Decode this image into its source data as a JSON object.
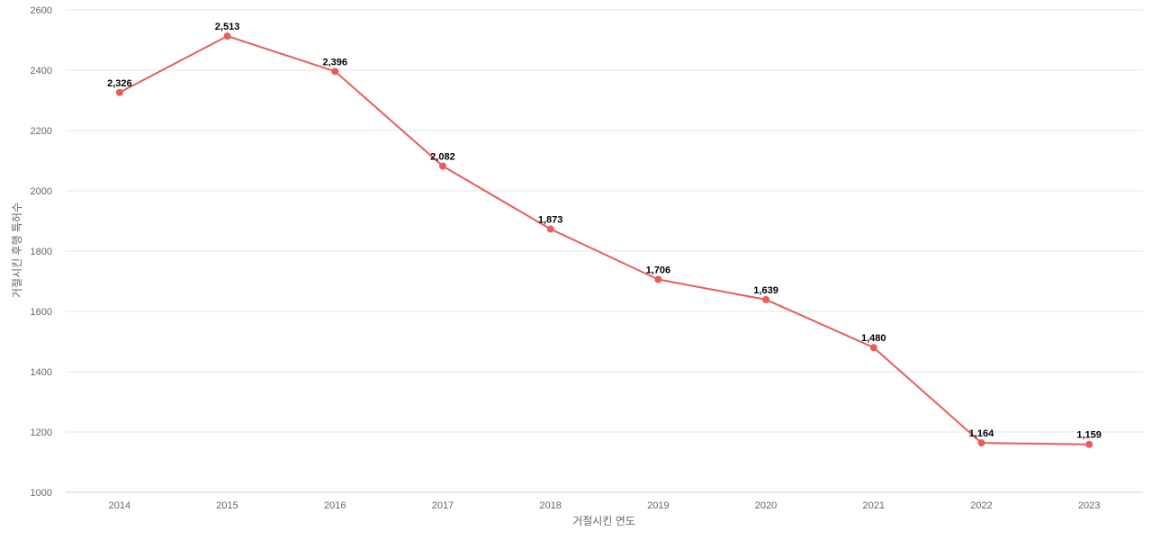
{
  "chart_data": {
    "type": "line",
    "title": "",
    "xlabel": "거절시킨 연도",
    "ylabel": "거절시킨 후행 특허수",
    "categories": [
      "2014",
      "2015",
      "2016",
      "2017",
      "2018",
      "2019",
      "2020",
      "2021",
      "2022",
      "2023"
    ],
    "series": [
      {
        "values": [
          2326,
          2513,
          2396,
          2082,
          1873,
          1706,
          1639,
          1480,
          1164,
          1159
        ],
        "value_labels": [
          "2,326",
          "2,513",
          "2,396",
          "2,082",
          "1,873",
          "1,706",
          "1,639",
          "1,480",
          "1,164",
          "1,159"
        ],
        "color": "#e85c5c"
      }
    ],
    "ylim": [
      1000,
      2600
    ],
    "yticks": [
      "1000",
      "1200",
      "1400",
      "1600",
      "1800",
      "2000",
      "2200",
      "2400",
      "2600"
    ],
    "grid": true,
    "legend": "none"
  }
}
